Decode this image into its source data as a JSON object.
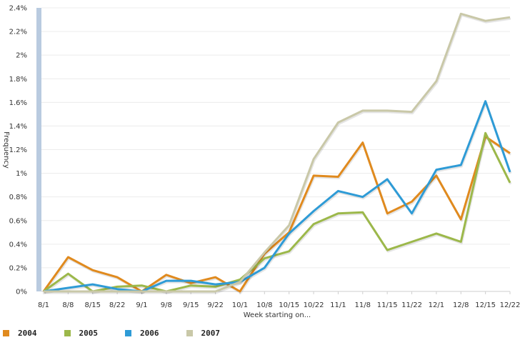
{
  "chart_data": {
    "type": "line",
    "xlabel": "Week starting on...",
    "ylabel": "Frequency",
    "categories": [
      "8/1",
      "8/8",
      "8/15",
      "8/22",
      "9/1",
      "9/8",
      "9/15",
      "9/22",
      "10/1",
      "10/8",
      "10/15",
      "10/22",
      "11/1",
      "11/8",
      "11/15",
      "11/22",
      "12/1",
      "12/8",
      "12/15",
      "12/22"
    ],
    "yticks": [
      "0%",
      "0.2%",
      "0.4%",
      "0.6%",
      "0.8%",
      "1%",
      "1.2%",
      "1.4%",
      "1.6%",
      "1.8%",
      "2%",
      "2.2%",
      "2.4%"
    ],
    "ylim": [
      0,
      2.4
    ],
    "grid": true,
    "legend_position": "bottom-left",
    "series": [
      {
        "name": "2004",
        "color": "#e08a1e",
        "values": [
          0.0,
          0.29,
          0.18,
          0.12,
          0.0,
          0.14,
          0.07,
          0.12,
          0.0,
          0.32,
          0.5,
          0.98,
          0.97,
          1.26,
          0.66,
          0.76,
          0.98,
          0.61,
          1.31,
          1.17
        ]
      },
      {
        "name": "2005",
        "color": "#9cb84a",
        "values": [
          0.0,
          0.15,
          0.0,
          0.04,
          0.05,
          0.0,
          0.05,
          0.04,
          0.1,
          0.28,
          0.34,
          0.57,
          0.66,
          0.67,
          0.35,
          0.42,
          0.49,
          0.42,
          1.34,
          0.92
        ]
      },
      {
        "name": "2006",
        "color": "#2e9bd6",
        "values": [
          0.0,
          0.03,
          0.06,
          0.02,
          0.0,
          0.09,
          0.09,
          0.06,
          0.08,
          0.2,
          0.49,
          0.68,
          0.85,
          0.8,
          0.95,
          0.66,
          1.03,
          1.07,
          1.61,
          1.01
        ]
      },
      {
        "name": "2007",
        "color": "#c9c8a8",
        "values": [
          0.0,
          0.0,
          0.0,
          0.0,
          0.0,
          0.0,
          0.0,
          0.0,
          0.08,
          0.33,
          0.56,
          1.12,
          1.43,
          1.53,
          1.53,
          1.52,
          1.78,
          2.35,
          2.29,
          2.32
        ]
      }
    ]
  }
}
